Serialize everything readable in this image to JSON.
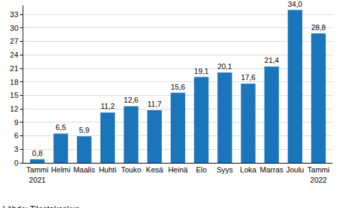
{
  "chart_data": {
    "type": "bar",
    "categories": [
      "Tammi\n2021",
      "Helmi",
      "Maalis",
      "Huhti",
      "Touko",
      "Kesä",
      "Heinä",
      "Elo",
      "Syys",
      "Loka",
      "Marras",
      "Joulu",
      "Tammi\n2022"
    ],
    "values": [
      0.8,
      6.5,
      5.9,
      11.2,
      12.6,
      11.7,
      15.6,
      19.1,
      20.1,
      17.6,
      21.4,
      34.0,
      28.8
    ],
    "value_labels": [
      "0,8",
      "6,5",
      "5,9",
      "11,2",
      "12,6",
      "11,7",
      "15,6",
      "19,1",
      "20,1",
      "17,6",
      "21,4",
      "34,0",
      "28,8"
    ],
    "data_labels": true,
    "color": "#1b75bb",
    "ylim": [
      0,
      35
    ],
    "yticks": [
      0,
      3,
      6,
      9,
      12,
      15,
      18,
      21,
      24,
      27,
      30,
      33
    ],
    "grid": true,
    "source": "Lähde: Tilastokeskus"
  }
}
